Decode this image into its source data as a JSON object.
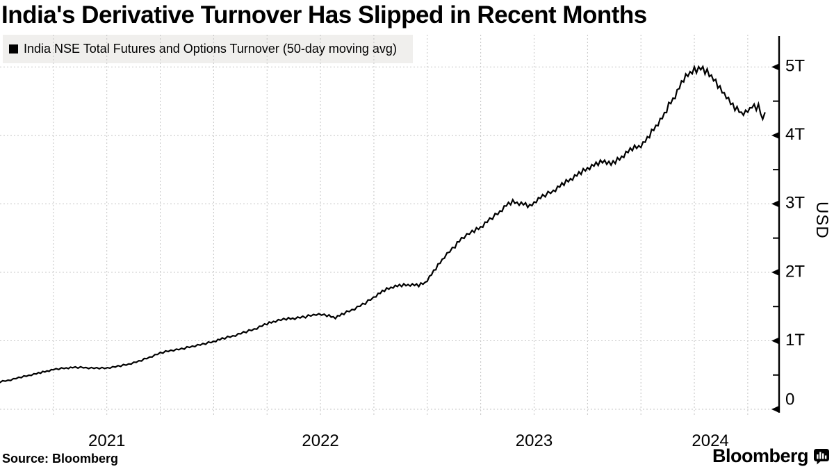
{
  "header": {
    "title": "India's Derivative Turnover Has Slipped in Recent Months"
  },
  "legend": {
    "label": "India NSE Total Futures and Options Turnover (50-day moving avg)",
    "swatch_color": "#000000",
    "background": "#f0efed"
  },
  "footer": {
    "source": "Source: Bloomberg",
    "brand": "Bloomberg"
  },
  "chart_data": {
    "type": "line",
    "title": "India's Derivative Turnover Has Slipped in Recent Months",
    "x_axis": {
      "tick_labels": [
        "2021",
        "2022",
        "2023",
        "2024"
      ],
      "range_decimal_years": [
        2021.0,
        2024.65
      ],
      "gridlines": "quarterly, dotted"
    },
    "y_axis": {
      "label": "USD",
      "side": "right",
      "unit": "trillions of USD",
      "tick_labels": [
        "0",
        "1T",
        "2T",
        "3T",
        "4T",
        "5T"
      ],
      "tick_values": [
        0,
        1,
        2,
        3,
        4,
        5
      ],
      "minor_tick_step": 0.5,
      "range": [
        0,
        5.45
      ]
    },
    "series": [
      {
        "name": "India NSE Total Futures and Options Turnover (50-day moving avg)",
        "color": "#000000",
        "points_decimal_year_vs_trillion_usd": [
          [
            2021.0,
            0.4
          ],
          [
            2021.05,
            0.43
          ],
          [
            2021.1,
            0.47
          ],
          [
            2021.17,
            0.52
          ],
          [
            2021.21,
            0.55
          ],
          [
            2021.25,
            0.58
          ],
          [
            2021.3,
            0.6
          ],
          [
            2021.34,
            0.61
          ],
          [
            2021.39,
            0.61
          ],
          [
            2021.44,
            0.6
          ],
          [
            2021.49,
            0.6
          ],
          [
            2021.54,
            0.62
          ],
          [
            2021.59,
            0.65
          ],
          [
            2021.65,
            0.7
          ],
          [
            2021.7,
            0.76
          ],
          [
            2021.75,
            0.82
          ],
          [
            2021.8,
            0.86
          ],
          [
            2021.85,
            0.88
          ],
          [
            2021.9,
            0.92
          ],
          [
            2021.95,
            0.95
          ],
          [
            2022.0,
            0.99
          ],
          [
            2022.04,
            1.03
          ],
          [
            2022.09,
            1.07
          ],
          [
            2022.14,
            1.12
          ],
          [
            2022.19,
            1.17
          ],
          [
            2022.25,
            1.25
          ],
          [
            2022.29,
            1.29
          ],
          [
            2022.34,
            1.32
          ],
          [
            2022.38,
            1.33
          ],
          [
            2022.43,
            1.35
          ],
          [
            2022.48,
            1.39
          ],
          [
            2022.53,
            1.37
          ],
          [
            2022.57,
            1.34
          ],
          [
            2022.61,
            1.4
          ],
          [
            2022.66,
            1.47
          ],
          [
            2022.71,
            1.55
          ],
          [
            2022.76,
            1.66
          ],
          [
            2022.8,
            1.74
          ],
          [
            2022.84,
            1.79
          ],
          [
            2022.88,
            1.81
          ],
          [
            2022.92,
            1.82
          ],
          [
            2022.96,
            1.81
          ],
          [
            2022.99,
            1.85
          ],
          [
            2023.02,
            1.97
          ],
          [
            2023.05,
            2.1
          ],
          [
            2023.08,
            2.23
          ],
          [
            2023.13,
            2.38
          ],
          [
            2023.16,
            2.5
          ],
          [
            2023.21,
            2.59
          ],
          [
            2023.25,
            2.66
          ],
          [
            2023.28,
            2.74
          ],
          [
            2023.33,
            2.86
          ],
          [
            2023.37,
            2.98
          ],
          [
            2023.4,
            3.03
          ],
          [
            2023.43,
            3.01
          ],
          [
            2023.46,
            2.99
          ],
          [
            2023.48,
            2.96
          ],
          [
            2023.51,
            3.05
          ],
          [
            2023.54,
            3.11
          ],
          [
            2023.59,
            3.19
          ],
          [
            2023.63,
            3.28
          ],
          [
            2023.67,
            3.36
          ],
          [
            2023.71,
            3.44
          ],
          [
            2023.75,
            3.52
          ],
          [
            2023.79,
            3.58
          ],
          [
            2023.83,
            3.63
          ],
          [
            2023.86,
            3.58
          ],
          [
            2023.9,
            3.66
          ],
          [
            2023.93,
            3.74
          ],
          [
            2023.96,
            3.81
          ],
          [
            2023.99,
            3.84
          ],
          [
            2024.01,
            3.88
          ],
          [
            2024.03,
            3.95
          ],
          [
            2024.05,
            4.05
          ],
          [
            2024.08,
            4.18
          ],
          [
            2024.11,
            4.3
          ],
          [
            2024.13,
            4.44
          ],
          [
            2024.16,
            4.58
          ],
          [
            2024.18,
            4.7
          ],
          [
            2024.2,
            4.82
          ],
          [
            2024.23,
            4.92
          ],
          [
            2024.25,
            4.97
          ],
          [
            2024.26,
            4.93
          ],
          [
            2024.28,
            5.0
          ],
          [
            2024.3,
            4.92
          ],
          [
            2024.31,
            4.96
          ],
          [
            2024.33,
            4.85
          ],
          [
            2024.35,
            4.78
          ],
          [
            2024.37,
            4.68
          ],
          [
            2024.4,
            4.58
          ],
          [
            2024.42,
            4.47
          ],
          [
            2024.44,
            4.4
          ],
          [
            2024.46,
            4.36
          ],
          [
            2024.47,
            4.33
          ],
          [
            2024.49,
            4.34
          ],
          [
            2024.51,
            4.37
          ],
          [
            2024.52,
            4.44
          ],
          [
            2024.54,
            4.39
          ],
          [
            2024.55,
            4.45
          ],
          [
            2024.56,
            4.36
          ],
          [
            2024.57,
            4.21
          ],
          [
            2024.58,
            4.33
          ]
        ]
      }
    ],
    "style": {
      "grid_color": "#c4c4c4",
      "axis_color": "#000000",
      "jitter_px_note": "line carries small weekly sawtooth jitter, amplitude grows with level"
    }
  }
}
